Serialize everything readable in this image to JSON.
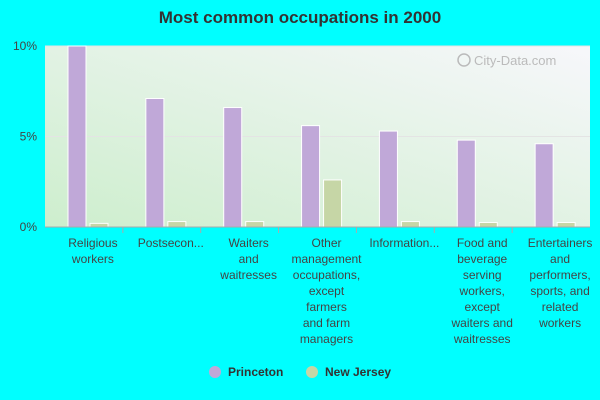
{
  "title": "Most common occupations in 2000",
  "watermark": "City-Data.com",
  "colors": {
    "background": "#00ffff",
    "princeton": "#c0a8d8",
    "new_jersey": "#c6d6a6",
    "plot_bg_top": "#f7f7fb",
    "plot_bg_bottom": "#cdeecd"
  },
  "chart_data": {
    "type": "bar",
    "title": "Most common occupations in 2000",
    "categories": [
      [
        "Religious",
        "workers"
      ],
      [
        "Postsecon..."
      ],
      [
        "Waiters",
        "and",
        "waitresses"
      ],
      [
        "Other",
        "management",
        "occupations,",
        "except",
        "farmers",
        "and farm",
        "managers"
      ],
      [
        "Information..."
      ],
      [
        "Food and",
        "beverage",
        "serving",
        "workers,",
        "except",
        "waiters and",
        "waitresses"
      ],
      [
        "Entertainers",
        "and",
        "performers,",
        "sports, and",
        "related",
        "workers"
      ]
    ],
    "series": [
      {
        "name": "Princeton",
        "values": [
          10.0,
          7.1,
          6.6,
          5.6,
          5.3,
          4.8,
          4.6
        ]
      },
      {
        "name": "New Jersey",
        "values": [
          0.2,
          0.3,
          0.3,
          2.6,
          0.3,
          0.25,
          0.25
        ]
      }
    ],
    "yticks": [
      "0%",
      "5%",
      "10%"
    ],
    "ylim": [
      0,
      10
    ],
    "legend_position": "bottom",
    "grid": true
  }
}
